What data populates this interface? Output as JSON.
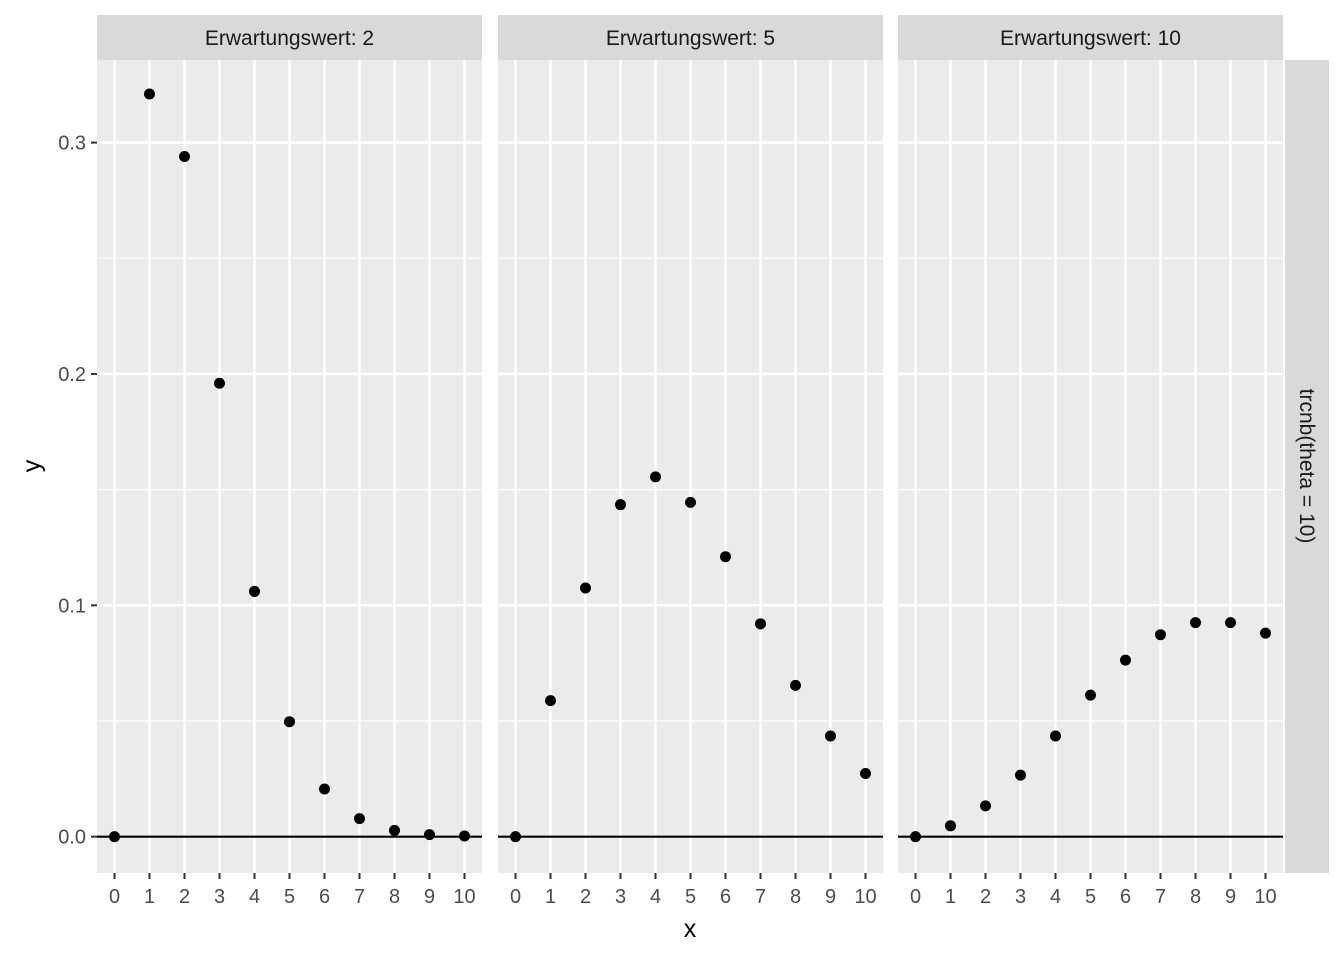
{
  "chart_data": {
    "type": "scatter",
    "facet_row_label": "trcnb(theta = 10)",
    "xlabel": "x",
    "ylabel": "y",
    "ylim": [
      -0.0157,
      0.3357
    ],
    "y_ticks": [
      0.0,
      0.1,
      0.2,
      0.3
    ],
    "y_tick_labels": [
      "0.0",
      "0.1",
      "0.2",
      "0.3"
    ],
    "x_ticks": [
      0,
      1,
      2,
      3,
      4,
      5,
      6,
      7,
      8,
      9,
      10
    ],
    "x_tick_labels": [
      "0",
      "1",
      "2",
      "3",
      "4",
      "5",
      "6",
      "7",
      "8",
      "9",
      "10"
    ],
    "grid": true,
    "hline_y": 0,
    "colors": {
      "panel_bg": "#ebebeb",
      "strip_bg": "#d9d9d9",
      "grid": "#ffffff",
      "point": "#000000"
    },
    "panels": [
      {
        "label": "Erwartungswert: 2",
        "x": [
          0,
          1,
          2,
          3,
          4,
          5,
          6,
          7,
          8,
          9,
          10
        ],
        "y": [
          0.0,
          0.321,
          0.294,
          0.196,
          0.106,
          0.0497,
          0.0206,
          0.0078,
          0.0027,
          0.0009,
          0.0003
        ]
      },
      {
        "label": "Erwartungswert: 5",
        "x": [
          0,
          1,
          2,
          3,
          4,
          5,
          6,
          7,
          8,
          9,
          10
        ],
        "y": [
          0.0,
          0.0588,
          0.1075,
          0.1435,
          0.1555,
          0.1445,
          0.121,
          0.092,
          0.0654,
          0.0435,
          0.0273
        ]
      },
      {
        "label": "Erwartungswert: 10",
        "x": [
          0,
          1,
          2,
          3,
          4,
          5,
          6,
          7,
          8,
          9,
          10
        ],
        "y": [
          0.0,
          0.0047,
          0.0133,
          0.0266,
          0.0435,
          0.0612,
          0.0763,
          0.0873,
          0.0925,
          0.0925,
          0.088
        ]
      }
    ]
  }
}
